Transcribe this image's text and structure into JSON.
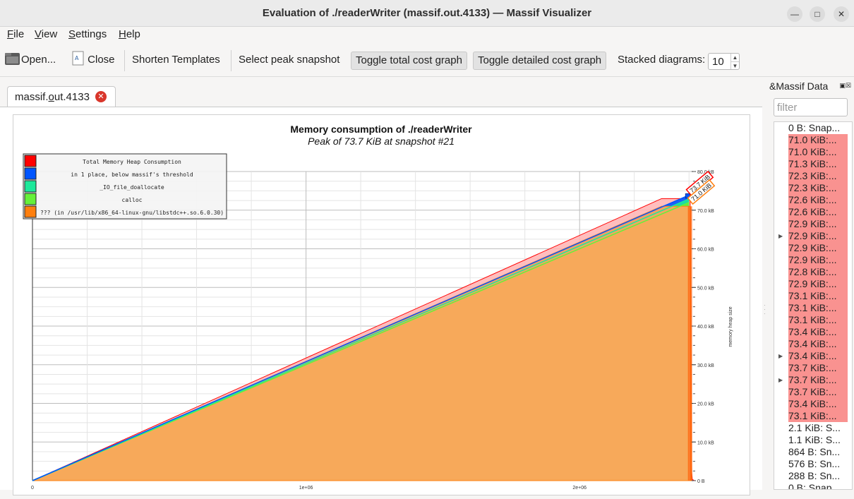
{
  "window": {
    "title": "Evaluation of ./readerWriter (massif.out.4133) — Massif Visualizer"
  },
  "menu": [
    {
      "label": "File",
      "u": "F",
      "rest": "ile"
    },
    {
      "label": "View",
      "u": "V",
      "rest": "iew"
    },
    {
      "label": "Settings",
      "u": "S",
      "rest": "ettings"
    },
    {
      "label": "Help",
      "u": "H",
      "rest": "elp"
    }
  ],
  "toolbar": {
    "open": "Open...",
    "close": "Close",
    "shorten": "Shorten Templates",
    "select_peak": "Select peak snapshot",
    "toggle_total": "Toggle total cost graph",
    "toggle_detailed": "Toggle detailed cost graph",
    "stacked_label": "Stacked diagrams:",
    "stacked_value": "10"
  },
  "tab": {
    "label_pre": "massif.",
    "label_u": "o",
    "label_post": "ut.4133"
  },
  "dock": {
    "title": "&Massif Data",
    "filter_placeholder": "filter",
    "items": [
      {
        "text": "0 B: Snap...",
        "hl": false,
        "exp": false
      },
      {
        "text": "71.0 KiB:...",
        "hl": true,
        "exp": false
      },
      {
        "text": "71.0 KiB:...",
        "hl": true,
        "exp": false
      },
      {
        "text": "71.3 KiB:...",
        "hl": true,
        "exp": false
      },
      {
        "text": "72.3 KiB:...",
        "hl": true,
        "exp": false
      },
      {
        "text": "72.3 KiB:...",
        "hl": true,
        "exp": false
      },
      {
        "text": "72.6 KiB:...",
        "hl": true,
        "exp": false
      },
      {
        "text": "72.6 KiB:...",
        "hl": true,
        "exp": false
      },
      {
        "text": "72.9 KiB:...",
        "hl": true,
        "exp": false
      },
      {
        "text": "72.9 KiB:...",
        "hl": true,
        "exp": true
      },
      {
        "text": "72.9 KiB:...",
        "hl": true,
        "exp": false
      },
      {
        "text": "72.9 KiB:...",
        "hl": true,
        "exp": false
      },
      {
        "text": "72.8 KiB:...",
        "hl": true,
        "exp": false
      },
      {
        "text": "72.9 KiB:...",
        "hl": true,
        "exp": false
      },
      {
        "text": "73.1 KiB:...",
        "hl": true,
        "exp": false
      },
      {
        "text": "73.1 KiB:...",
        "hl": true,
        "exp": false
      },
      {
        "text": "73.1 KiB:...",
        "hl": true,
        "exp": false
      },
      {
        "text": "73.4 KiB:...",
        "hl": true,
        "exp": false
      },
      {
        "text": "73.4 KiB:...",
        "hl": true,
        "exp": false
      },
      {
        "text": "73.4 KiB:...",
        "hl": true,
        "exp": true
      },
      {
        "text": "73.7 KiB:...",
        "hl": true,
        "exp": false
      },
      {
        "text": "73.7 KiB:...",
        "hl": true,
        "exp": true
      },
      {
        "text": "73.7 KiB:...",
        "hl": true,
        "exp": false
      },
      {
        "text": "73.4 KiB:...",
        "hl": true,
        "exp": false
      },
      {
        "text": "73.1 KiB:...",
        "hl": true,
        "exp": false
      },
      {
        "text": "2.1 KiB: S...",
        "hl": false,
        "exp": false
      },
      {
        "text": "1.1 KiB: S...",
        "hl": false,
        "exp": false
      },
      {
        "text": "864 B: Sn...",
        "hl": false,
        "exp": false
      },
      {
        "text": "576 B: Sn...",
        "hl": false,
        "exp": false
      },
      {
        "text": "288 B: Sn...",
        "hl": false,
        "exp": false
      },
      {
        "text": "0 B: Snap...",
        "hl": false,
        "exp": false
      }
    ]
  },
  "chart_data": {
    "type": "area",
    "title": "Memory consumption of ./readerWriter",
    "subtitle": "Peak of 73.7 KiB at snapshot #21",
    "ylabel": "memory heap size",
    "xlim": [
      0,
      2420000
    ],
    "ylim": [
      0,
      80
    ],
    "yticks": [
      "0 B",
      "10.0 kB",
      "20.0 kB",
      "30.0 kB",
      "40.0 kB",
      "50.0 kB",
      "60.0 kB",
      "70.0 kB",
      "80.0 kB"
    ],
    "xticks": [
      {
        "v": 0,
        "label": "0"
      },
      {
        "v": 1000000,
        "label": "1e+06"
      },
      {
        "v": 2000000,
        "label": "2e+06"
      }
    ],
    "grid": true,
    "legend_position": "top-left",
    "colors": {
      "total": "#ff0000",
      "below": "#0055ff",
      "io": "#1de99b",
      "calloc": "#66f03a",
      "libstd": "#ff7f0e"
    },
    "legend": [
      {
        "label": "Total Memory Heap Consumption",
        "color": "#ff0000"
      },
      {
        "label": "in 1 place, below massif's threshold",
        "color": "#0055ff"
      },
      {
        "label": "_IO_file_doallocate",
        "color": "#1de99b"
      },
      {
        "label": "calloc",
        "color": "#66f03a"
      },
      {
        "label": "??? (in /usr/lib/x86_64-linux-gnu/libstdc++.so.6.0.30)",
        "color": "#ff7f0e"
      }
    ],
    "peak_labels": [
      {
        "text": "73.7 KiB",
        "color": "#ff0000"
      },
      {
        "text": "71.0 KiB",
        "color": "#ff7f0e"
      }
    ],
    "series": {
      "x": [
        0,
        2300000,
        2390000,
        2395000,
        2400000,
        2404000,
        2410000,
        2412000,
        2420000
      ],
      "total": [
        0,
        73.0,
        73.0,
        73.7,
        73.4,
        73.1,
        2.1,
        0.3,
        0
      ],
      "libstd": [
        0,
        71.0,
        71.0,
        71.0,
        71.0,
        71.0,
        0,
        0,
        0
      ],
      "below_line": [
        [
          0,
          0
        ],
        [
          2420000,
          74.5
        ]
      ],
      "io_line": [
        [
          0,
          0
        ],
        [
          2420000,
          73.5
        ]
      ],
      "calloc_line": [
        [
          0,
          0
        ],
        [
          2420000,
          72.6
        ]
      ]
    }
  }
}
